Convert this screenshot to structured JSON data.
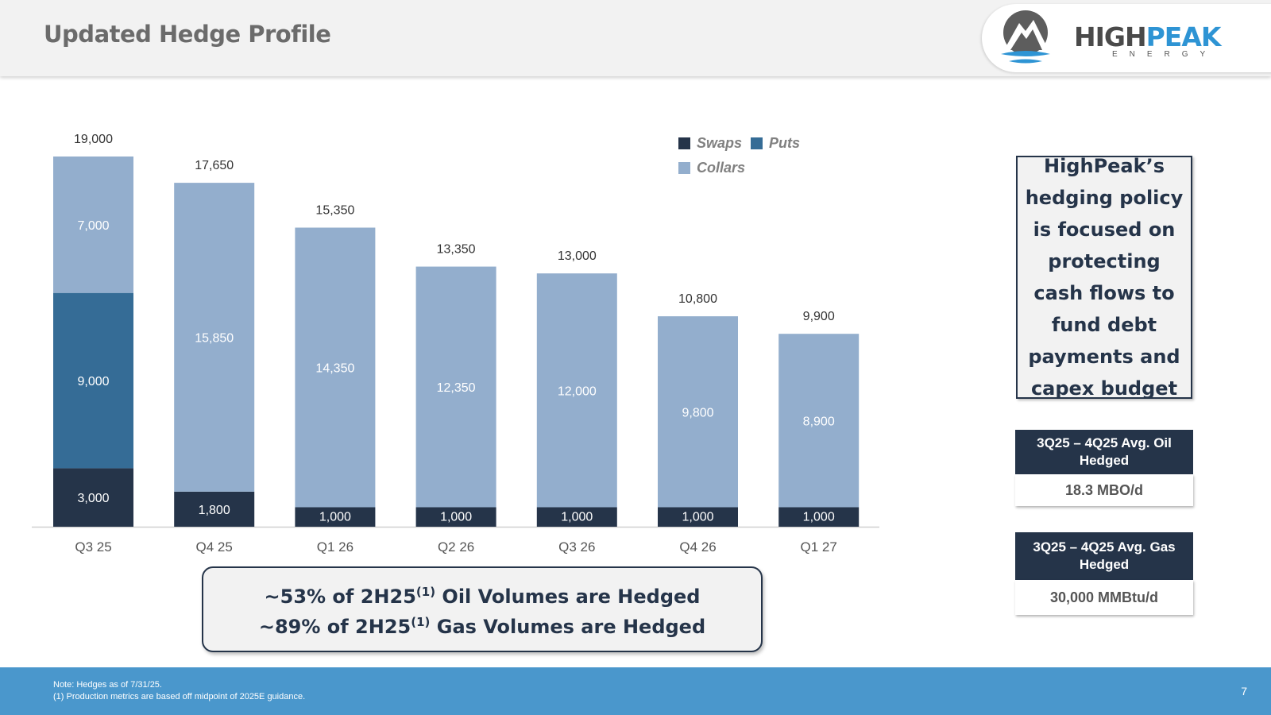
{
  "header": {
    "title": "Updated Hedge Profile"
  },
  "logo": {
    "word_high": "HIGH",
    "word_peak": "PEAK",
    "sub": "ENERGY"
  },
  "chart_data": {
    "type": "bar",
    "stacked": true,
    "categories": [
      "Q3 25",
      "Q4 25",
      "Q1 26",
      "Q2 26",
      "Q3 26",
      "Q4 26",
      "Q1 27"
    ],
    "series": [
      {
        "name": "Swaps",
        "values": [
          3000,
          1800,
          1000,
          1000,
          1000,
          1000,
          1000
        ],
        "color": "#253449"
      },
      {
        "name": "Puts",
        "values": [
          9000,
          0,
          0,
          0,
          0,
          0,
          0
        ],
        "color": "#356c96"
      },
      {
        "name": "Collars",
        "values": [
          7000,
          15850,
          14350,
          12350,
          12000,
          9800,
          8900
        ],
        "color": "#93aecd"
      }
    ],
    "totals": [
      19000,
      17650,
      15350,
      13350,
      13000,
      10800,
      9900
    ],
    "data_labels_format": "thousands_comma",
    "legend_position": "top-right",
    "grid": false,
    "ylim": [
      0,
      19000
    ]
  },
  "callout": {
    "text": "HighPeak’s hedging policy is focused on protecting cash flows to fund debt payments and capex budget"
  },
  "oil_kpi": {
    "label": "3Q25 – 4Q25 Avg. Oil Hedged",
    "value": "18.3 MBO/d"
  },
  "gas_kpi": {
    "label": "3Q25 – 4Q25  Avg. Gas Hedged",
    "value": "30,000 MMBtu/d"
  },
  "summary": {
    "line1_pre": "~53% of 2H25",
    "line1_sup": "(1)",
    "line1_post": " Oil Volumes are Hedged",
    "line2_pre": "~89% of 2H25",
    "line2_sup": "(1)",
    "line2_post": " Gas Volumes are Hedged"
  },
  "footer": {
    "note1": "Note: Hedges as of 7/31/25.",
    "note2": "(1) Production metrics are based off midpoint of 2025E guidance.",
    "page_number": "7"
  }
}
